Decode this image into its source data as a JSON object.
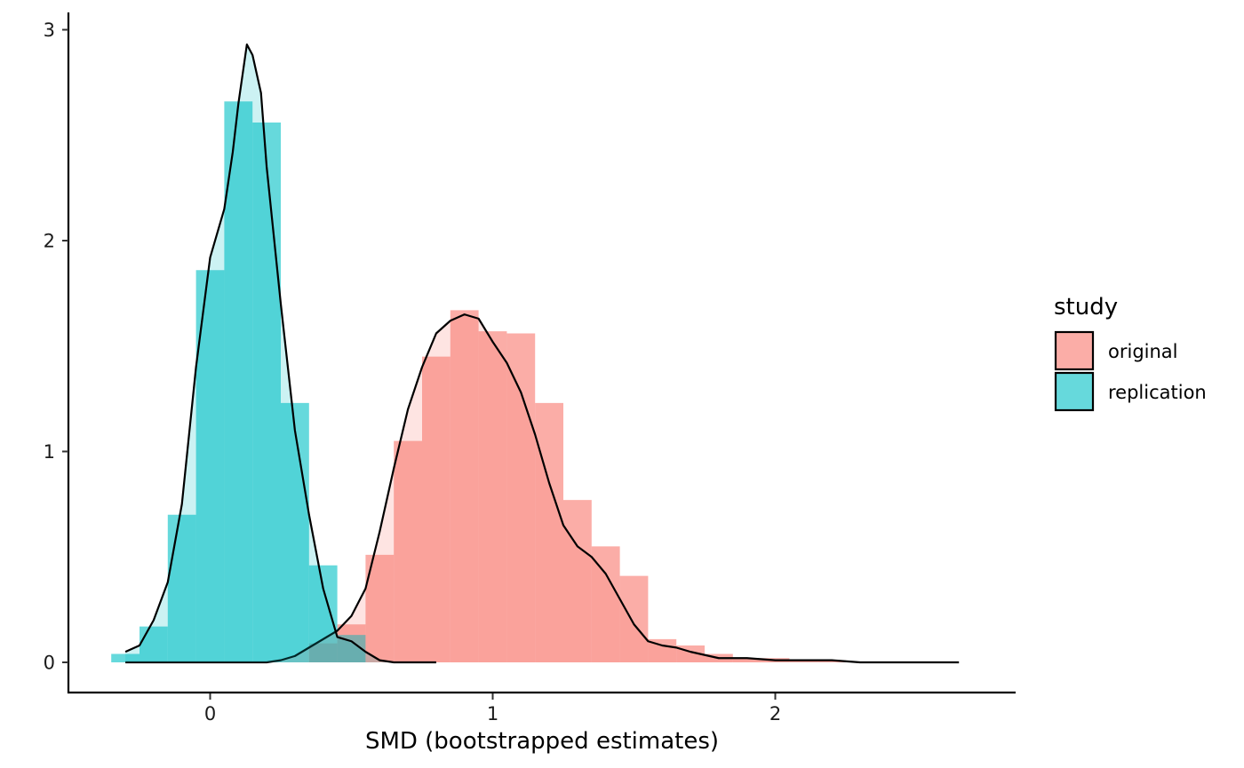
{
  "chart_data": {
    "type": "histogram+density",
    "title": "",
    "xlabel": "SMD (bootstrapped estimates)",
    "ylabel": "",
    "xlim": [
      -0.5,
      2.85
    ],
    "ylim": [
      -0.14,
      3.08
    ],
    "x_ticks": [
      0,
      1,
      2
    ],
    "x_tick_labels": [
      "0",
      "1",
      "2"
    ],
    "y_ticks": [
      0,
      1,
      2,
      3
    ],
    "y_tick_labels": [
      "0",
      "1",
      "2",
      "3"
    ],
    "bin_width": 0.1,
    "grid": false,
    "legend": {
      "title": "study",
      "position": "right",
      "entries": [
        {
          "label": "original",
          "color": "#F8766D"
        },
        {
          "label": "replication",
          "color": "#00BFC4"
        }
      ]
    },
    "series": [
      {
        "name": "original",
        "color": "#F8766D",
        "histogram": {
          "bin_starts": [
            0.35,
            0.45,
            0.55,
            0.65,
            0.75,
            0.85,
            0.95,
            1.05,
            1.15,
            1.25,
            1.35,
            1.45,
            1.55,
            1.65,
            1.75,
            1.85,
            1.95,
            2.05,
            2.15
          ],
          "density": [
            0.09,
            0.18,
            0.51,
            1.05,
            1.45,
            1.67,
            1.57,
            1.56,
            1.23,
            0.77,
            0.55,
            0.41,
            0.11,
            0.08,
            0.04,
            0.02,
            0.02,
            0.01,
            0.01
          ]
        },
        "density_curve": {
          "x": [
            -0.3,
            0.1,
            0.2,
            0.25,
            0.3,
            0.35,
            0.4,
            0.45,
            0.5,
            0.55,
            0.6,
            0.65,
            0.7,
            0.75,
            0.8,
            0.85,
            0.9,
            0.95,
            1.0,
            1.05,
            1.1,
            1.15,
            1.2,
            1.25,
            1.3,
            1.35,
            1.4,
            1.45,
            1.5,
            1.55,
            1.6,
            1.65,
            1.7,
            1.8,
            1.9,
            2.0,
            2.1,
            2.2,
            2.3,
            2.5,
            2.65
          ],
          "y": [
            0.0,
            0.0,
            0.0,
            0.01,
            0.03,
            0.07,
            0.11,
            0.15,
            0.22,
            0.35,
            0.62,
            0.92,
            1.2,
            1.4,
            1.56,
            1.62,
            1.65,
            1.63,
            1.52,
            1.42,
            1.28,
            1.08,
            0.85,
            0.65,
            0.55,
            0.5,
            0.42,
            0.3,
            0.18,
            0.1,
            0.08,
            0.07,
            0.05,
            0.02,
            0.02,
            0.01,
            0.01,
            0.01,
            0.0,
            0.0,
            0.0
          ]
        }
      },
      {
        "name": "replication",
        "color": "#00BFC4",
        "histogram": {
          "bin_starts": [
            -0.35,
            -0.25,
            -0.15,
            -0.05,
            0.05,
            0.15,
            0.25,
            0.35,
            0.45
          ],
          "density": [
            0.04,
            0.17,
            0.7,
            1.86,
            2.66,
            2.56,
            1.23,
            0.46,
            0.13
          ]
        },
        "density_curve": {
          "x": [
            -0.3,
            -0.25,
            -0.2,
            -0.15,
            -0.1,
            -0.05,
            0.0,
            0.05,
            0.08,
            0.1,
            0.13,
            0.15,
            0.18,
            0.2,
            0.25,
            0.3,
            0.35,
            0.4,
            0.45,
            0.5,
            0.55,
            0.6,
            0.65,
            0.7,
            0.8
          ],
          "y": [
            0.05,
            0.08,
            0.2,
            0.38,
            0.75,
            1.4,
            1.92,
            2.15,
            2.42,
            2.65,
            2.93,
            2.88,
            2.7,
            2.35,
            1.7,
            1.1,
            0.7,
            0.35,
            0.12,
            0.1,
            0.05,
            0.01,
            0.0,
            0.0,
            0.0
          ]
        }
      }
    ]
  }
}
